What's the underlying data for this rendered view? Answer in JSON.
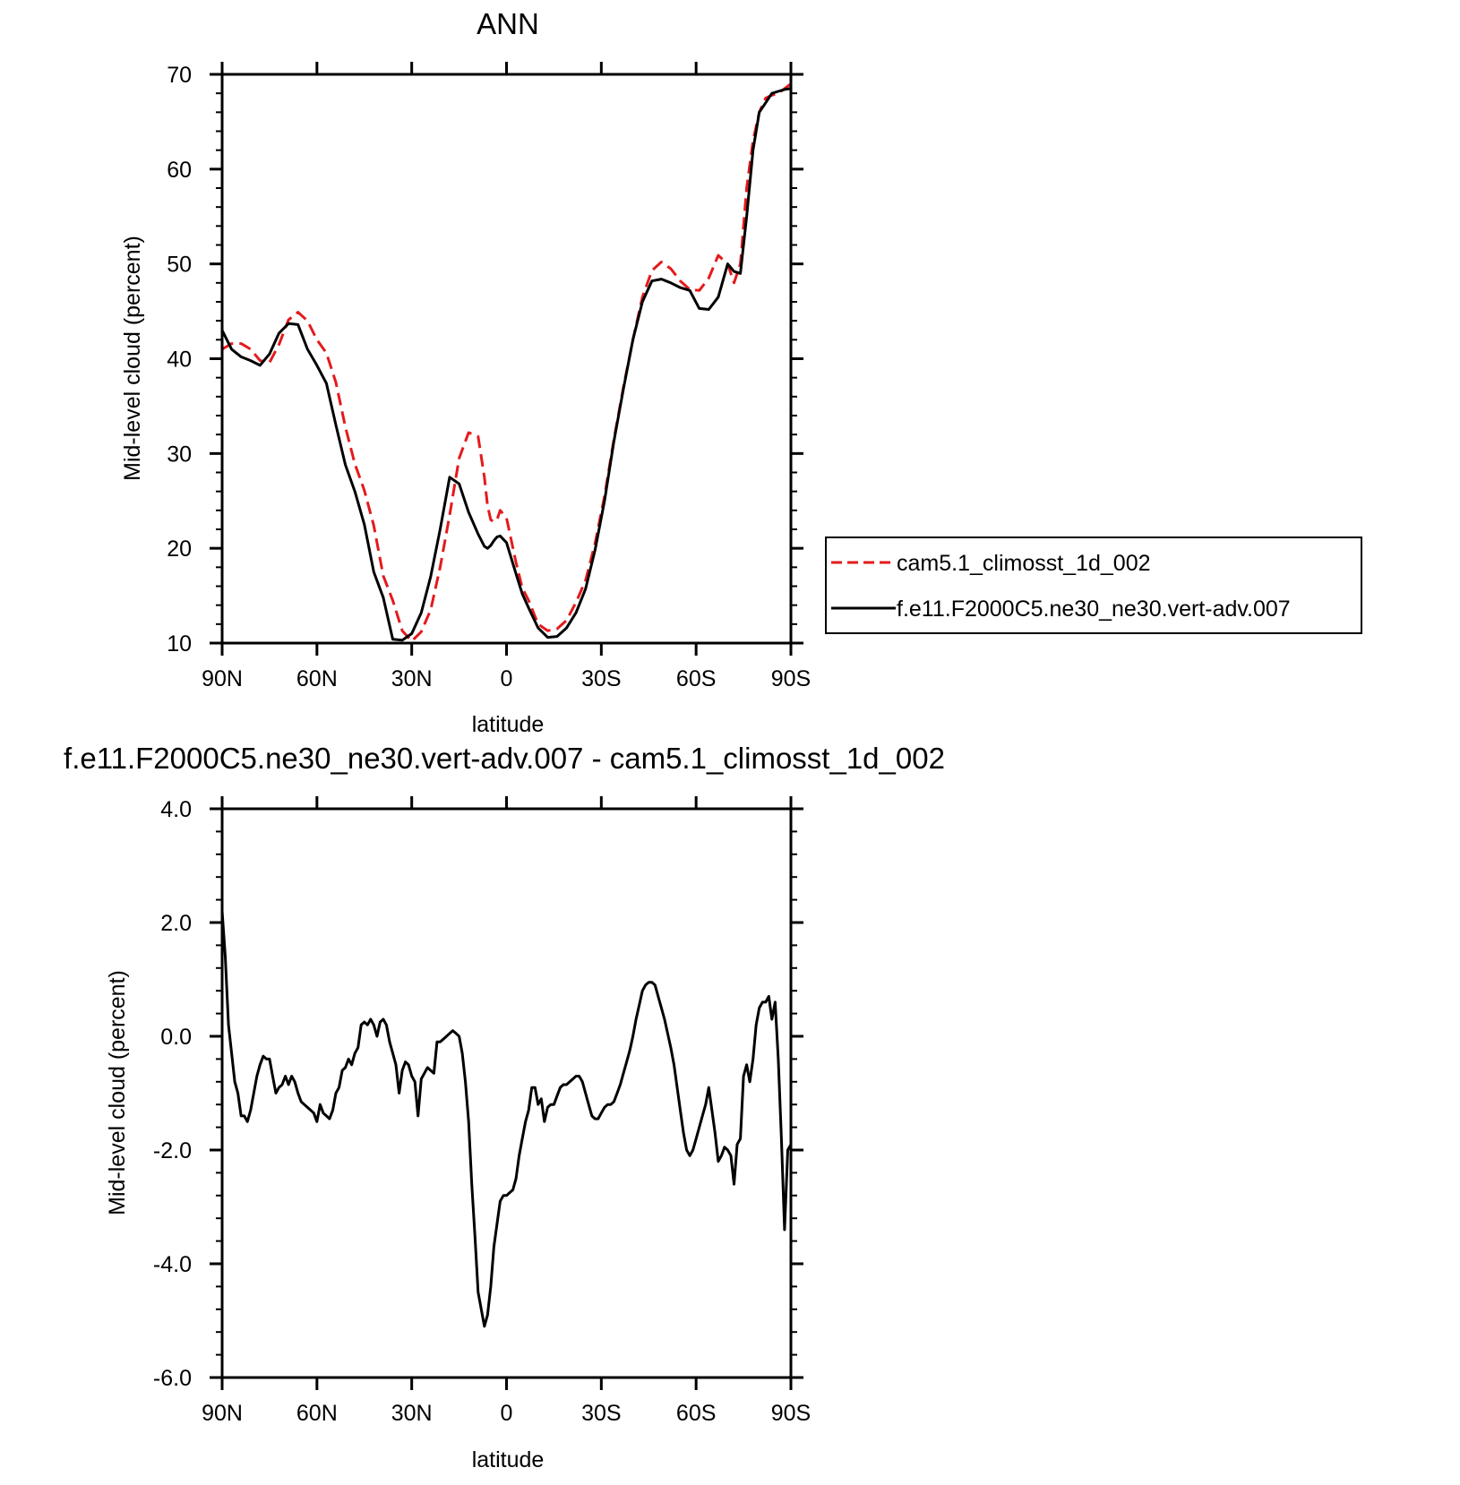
{
  "chart_data": [
    {
      "type": "line",
      "title": "ANN",
      "xlabel": "latitude",
      "ylabel": "Mid-level cloud (percent)",
      "xlim": [
        90,
        -90
      ],
      "ylim": [
        10,
        70
      ],
      "xticks": [
        {
          "value": 90,
          "label": "90N"
        },
        {
          "value": 60,
          "label": "60N"
        },
        {
          "value": 30,
          "label": "30N"
        },
        {
          "value": 0,
          "label": "0"
        },
        {
          "value": -30,
          "label": "30S"
        },
        {
          "value": -60,
          "label": "60S"
        },
        {
          "value": -90,
          "label": "90S"
        }
      ],
      "yticks": [
        {
          "value": 10,
          "label": "10"
        },
        {
          "value": 20,
          "label": "20"
        },
        {
          "value": 30,
          "label": "30"
        },
        {
          "value": 40,
          "label": "40"
        },
        {
          "value": 50,
          "label": "50"
        },
        {
          "value": 60,
          "label": "60"
        },
        {
          "value": 70,
          "label": "70"
        }
      ],
      "grid": false,
      "legend_position": "right",
      "series": [
        {
          "name": "cam5.1_climosst_1d_002",
          "color": "#e41a1c",
          "style": "dashed",
          "x": [
            90,
            87,
            84,
            81,
            78,
            75,
            72,
            69,
            66,
            63,
            60,
            57,
            54,
            51,
            48,
            45,
            42,
            39,
            36,
            33,
            30,
            27,
            24,
            21,
            18,
            15,
            12,
            9,
            7,
            6,
            5,
            4,
            3,
            2,
            0,
            -3,
            -5,
            -7,
            -10,
            -13,
            -16,
            -19,
            -22,
            -25,
            -28,
            -31,
            -34,
            -37,
            -40,
            -43,
            -46,
            -49,
            -52,
            -55,
            -58,
            -61,
            -64,
            -67,
            -70,
            -72,
            -74,
            -76,
            -78,
            -80,
            -82,
            -84,
            -86,
            -88,
            -90
          ],
          "y": [
            41.0,
            41.6,
            41.6,
            41.0,
            39.8,
            39.6,
            41.5,
            44.1,
            44.9,
            44.0,
            42.0,
            40.6,
            37.5,
            32.8,
            28.9,
            26.1,
            22.4,
            17.1,
            14.5,
            11.3,
            10.2,
            11.2,
            13.5,
            18.0,
            23.5,
            29.5,
            32.2,
            31.8,
            27.5,
            24.5,
            23.0,
            22.8,
            23.0,
            24.0,
            23.2,
            18.5,
            15.8,
            14.5,
            12.0,
            11.3,
            11.5,
            12.4,
            14.3,
            16.6,
            20.5,
            25.5,
            31.5,
            37.0,
            42.0,
            46.5,
            49.3,
            50.2,
            49.5,
            48.2,
            47.3,
            47.2,
            48.5,
            50.9,
            50.0,
            48.0,
            50.0,
            58.0,
            63.0,
            66.0,
            67.5,
            67.8,
            68.0,
            68.5,
            69.0
          ]
        },
        {
          "name": "f.e11.F2000C5.ne30_ne30.vert-adv.007",
          "color": "#000000",
          "style": "solid",
          "x": [
            90,
            87,
            84,
            81,
            78,
            75,
            72,
            69,
            66,
            63,
            60,
            57,
            54,
            51,
            48,
            45,
            42,
            39,
            36,
            33,
            30,
            27,
            24,
            21,
            18,
            15,
            12,
            9,
            7,
            6,
            5,
            4,
            3,
            2,
            0,
            -3,
            -5,
            -7,
            -10,
            -13,
            -16,
            -19,
            -22,
            -25,
            -28,
            -31,
            -34,
            -37,
            -40,
            -43,
            -46,
            -49,
            -52,
            -55,
            -58,
            -61,
            -64,
            -67,
            -70,
            -72,
            -74,
            -76,
            -78,
            -80,
            -82,
            -84,
            -86,
            -88,
            -90
          ],
          "y": [
            43.0,
            41.0,
            40.2,
            39.8,
            39.3,
            40.5,
            42.7,
            43.7,
            43.6,
            41.0,
            39.3,
            37.4,
            33.0,
            28.8,
            26.0,
            22.5,
            17.5,
            14.8,
            10.4,
            10.3,
            11.0,
            13.2,
            17.0,
            22.0,
            27.5,
            26.8,
            23.8,
            21.5,
            20.2,
            20.0,
            20.3,
            20.8,
            21.2,
            21.3,
            20.6,
            17.3,
            15.2,
            13.7,
            11.6,
            10.6,
            10.7,
            11.6,
            13.2,
            15.7,
            19.8,
            25.0,
            31.3,
            36.8,
            42.0,
            46.0,
            48.2,
            48.4,
            48.0,
            47.5,
            47.2,
            45.3,
            45.2,
            46.5,
            50.0,
            49.2,
            49.0,
            55.0,
            62.0,
            66.0,
            67.0,
            68.0,
            68.2,
            68.4,
            68.5
          ]
        }
      ]
    },
    {
      "type": "line",
      "title": "f.e11.F2000C5.ne30_ne30.vert-adv.007 - cam5.1_climosst_1d_002",
      "xlabel": "latitude",
      "ylabel": "Mid-level cloud (percent)",
      "xlim": [
        90,
        -90
      ],
      "ylim": [
        -6,
        4
      ],
      "xticks": [
        {
          "value": 90,
          "label": "90N"
        },
        {
          "value": 60,
          "label": "60N"
        },
        {
          "value": 30,
          "label": "30N"
        },
        {
          "value": 0,
          "label": "0"
        },
        {
          "value": -30,
          "label": "30S"
        },
        {
          "value": -60,
          "label": "60S"
        },
        {
          "value": -90,
          "label": "90S"
        }
      ],
      "yticks": [
        {
          "value": 4,
          "label": "4.0"
        },
        {
          "value": 2,
          "label": "2.0"
        },
        {
          "value": 0,
          "label": "0.0"
        },
        {
          "value": -2,
          "label": "-2.0"
        },
        {
          "value": -4,
          "label": "-4.0"
        },
        {
          "value": -6,
          "label": "-6.0"
        }
      ],
      "grid": false,
      "series": [
        {
          "color": "#000000",
          "style": "solid",
          "x": [
            90,
            89,
            88,
            87,
            86,
            85,
            84,
            83,
            82,
            81,
            80,
            79,
            78,
            77,
            76,
            75,
            74,
            73,
            72,
            71,
            70,
            69,
            68,
            67,
            66,
            65,
            64,
            63,
            62,
            61,
            60,
            59,
            58,
            57,
            56,
            55,
            54,
            53,
            52,
            51,
            50,
            49,
            48,
            47,
            46,
            45,
            44,
            43,
            42,
            41,
            40,
            39,
            38,
            37,
            36,
            35,
            34,
            33,
            32,
            31,
            30,
            29,
            28,
            27,
            26,
            25,
            24,
            23,
            22,
            21,
            20,
            19,
            18,
            17,
            16,
            15,
            14,
            13,
            12,
            11,
            10,
            9,
            8,
            7,
            6,
            5,
            4,
            3,
            2,
            1,
            0,
            -1,
            -2,
            -3,
            -4,
            -5,
            -6,
            -7,
            -8,
            -9,
            -10,
            -11,
            -12,
            -13,
            -14,
            -15,
            -16,
            -17,
            -18,
            -19,
            -20,
            -21,
            -22,
            -23,
            -24,
            -25,
            -26,
            -27,
            -28,
            -29,
            -30,
            -31,
            -32,
            -33,
            -34,
            -35,
            -36,
            -37,
            -38,
            -39,
            -40,
            -41,
            -42,
            -43,
            -44,
            -45,
            -46,
            -47,
            -48,
            -49,
            -50,
            -51,
            -52,
            -53,
            -54,
            -55,
            -56,
            -57,
            -58,
            -59,
            -60,
            -61,
            -62,
            -63,
            -64,
            -65,
            -66,
            -67,
            -68,
            -69,
            -70,
            -71,
            -72,
            -73,
            -74,
            -75,
            -76,
            -77,
            -78,
            -79,
            -80,
            -81,
            -82,
            -83,
            -84,
            -85,
            -86,
            -87,
            -88,
            -89,
            -90
          ],
          "y": [
            2.2,
            1.4,
            0.2,
            -0.3,
            -0.8,
            -1.0,
            -1.4,
            -1.4,
            -1.5,
            -1.3,
            -1.0,
            -0.7,
            -0.5,
            -0.35,
            -0.4,
            -0.4,
            -0.7,
            -1.0,
            -0.9,
            -0.85,
            -0.7,
            -0.85,
            -0.7,
            -0.8,
            -1.0,
            -1.15,
            -1.2,
            -1.25,
            -1.3,
            -1.35,
            -1.5,
            -1.2,
            -1.35,
            -1.4,
            -1.45,
            -1.3,
            -1.0,
            -0.9,
            -0.6,
            -0.55,
            -0.4,
            -0.5,
            -0.3,
            -0.2,
            0.2,
            0.25,
            0.2,
            0.3,
            0.2,
            0.0,
            0.25,
            0.3,
            0.2,
            -0.1,
            -0.3,
            -0.5,
            -1.0,
            -0.6,
            -0.45,
            -0.5,
            -0.7,
            -0.8,
            -1.4,
            -0.75,
            -0.65,
            -0.55,
            -0.6,
            -0.65,
            -0.1,
            -0.1,
            -0.05,
            0.0,
            0.05,
            0.1,
            0.05,
            0.0,
            -0.3,
            -0.8,
            -1.5,
            -2.6,
            -3.5,
            -4.5,
            -4.8,
            -5.1,
            -4.9,
            -4.4,
            -3.7,
            -3.3,
            -2.9,
            -2.8,
            -2.8,
            -2.75,
            -2.7,
            -2.5,
            -2.1,
            -1.8,
            -1.5,
            -1.3,
            -0.9,
            -0.9,
            -1.2,
            -1.1,
            -1.5,
            -1.25,
            -1.2,
            -1.2,
            -1.05,
            -0.9,
            -0.85,
            -0.85,
            -0.8,
            -0.75,
            -0.7,
            -0.7,
            -0.8,
            -1.0,
            -1.2,
            -1.4,
            -1.45,
            -1.45,
            -1.35,
            -1.25,
            -1.2,
            -1.2,
            -1.15,
            -1.0,
            -0.85,
            -0.65,
            -0.45,
            -0.25,
            0.0,
            0.3,
            0.55,
            0.8,
            0.9,
            0.95,
            0.95,
            0.9,
            0.7,
            0.5,
            0.3,
            0.05,
            -0.2,
            -0.5,
            -0.9,
            -1.3,
            -1.7,
            -2.0,
            -2.1,
            -2.0,
            -1.8,
            -1.6,
            -1.4,
            -1.2,
            -0.9,
            -1.3,
            -1.7,
            -2.2,
            -2.1,
            -1.95,
            -2.0,
            -2.1,
            -2.6,
            -1.9,
            -1.8,
            -0.7,
            -0.5,
            -0.8,
            -0.4,
            0.2,
            0.5,
            0.6,
            0.6,
            0.7,
            0.3,
            0.6,
            -0.4,
            -1.8,
            -3.4,
            -2.0,
            -1.9
          ]
        }
      ]
    }
  ]
}
